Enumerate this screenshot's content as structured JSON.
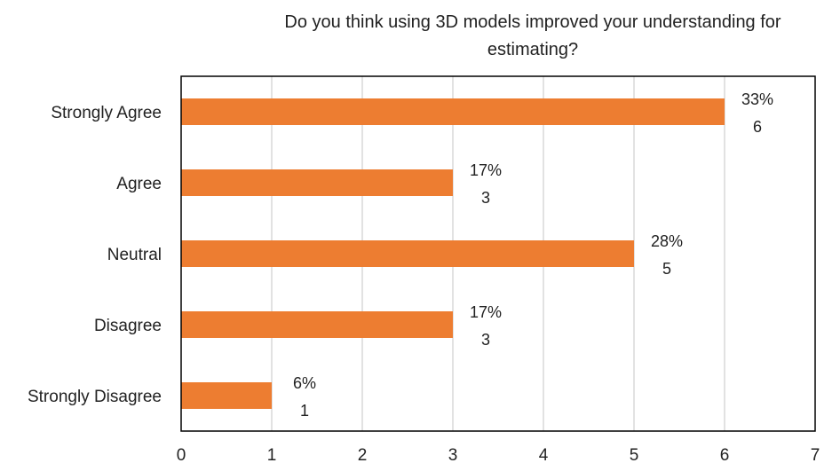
{
  "chart_data": {
    "type": "bar",
    "orientation": "horizontal",
    "title": "Do you think using 3D models improved your understanding for estimating?",
    "title_lines": [
      "Do you think using 3D models improved your understanding for",
      "estimating?"
    ],
    "categories": [
      "Strongly Agree",
      "Agree",
      "Neutral",
      "Disagree",
      "Strongly Disagree"
    ],
    "values": [
      6,
      3,
      5,
      3,
      1
    ],
    "percent_labels": [
      "33%",
      "17%",
      "28%",
      "17%",
      "6%"
    ],
    "xlim": [
      0,
      7
    ],
    "xticks": [
      "0",
      "1",
      "2",
      "3",
      "4",
      "5",
      "6",
      "7"
    ],
    "xlabel": "",
    "ylabel": "",
    "grid": "vertical",
    "legend": "none",
    "bar_color": "#ED7D31",
    "grid_color": "#D9D9D9",
    "frame_color": "#000000"
  }
}
